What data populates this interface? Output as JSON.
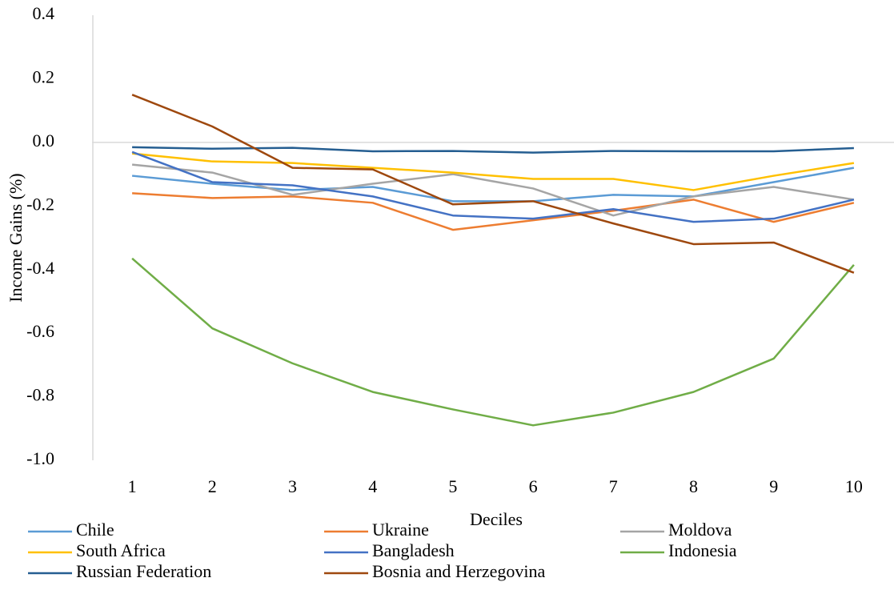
{
  "chart_data": {
    "type": "line",
    "x_label": "Deciles",
    "y_label": "Income Gains (%)",
    "categories": [
      "1",
      "2",
      "3",
      "4",
      "5",
      "6",
      "7",
      "8",
      "9",
      "10"
    ],
    "ylim": [
      -1.0,
      0.4
    ],
    "yticks": [
      0.4,
      0.2,
      {
        "value": 0,
        "label": "0.0"
      },
      -0.2,
      -0.4,
      -0.6,
      -0.8,
      {
        "value": -1.0,
        "label": "-1.0"
      }
    ],
    "grid": false,
    "legend": "bottom",
    "series": [
      {
        "name": "Chile",
        "color": "#5b9bd5",
        "values": [
          -0.105,
          -0.13,
          -0.15,
          -0.14,
          -0.185,
          -0.185,
          -0.165,
          -0.17,
          -0.125,
          -0.08
        ]
      },
      {
        "name": "Ukraine",
        "color": "#ed7d31",
        "values": [
          -0.16,
          -0.175,
          -0.17,
          -0.19,
          -0.275,
          -0.245,
          -0.215,
          -0.18,
          -0.25,
          -0.19
        ]
      },
      {
        "name": "Moldova",
        "color": "#a5a5a5",
        "values": [
          -0.07,
          -0.095,
          -0.165,
          -0.13,
          -0.1,
          -0.145,
          -0.23,
          -0.17,
          -0.14,
          -0.18
        ]
      },
      {
        "name": "South Africa",
        "color": "#ffc000",
        "values": [
          -0.035,
          -0.06,
          -0.065,
          -0.08,
          -0.095,
          -0.115,
          -0.115,
          -0.15,
          -0.105,
          -0.065
        ]
      },
      {
        "name": "Bangladesh",
        "color": "#4472c4",
        "values": [
          -0.03,
          -0.125,
          -0.135,
          -0.17,
          -0.23,
          -0.24,
          -0.21,
          -0.25,
          -0.24,
          -0.18
        ]
      },
      {
        "name": "Indonesia",
        "color": "#70ad47",
        "values": [
          -0.365,
          -0.585,
          -0.695,
          -0.785,
          -0.84,
          -0.89,
          -0.85,
          -0.785,
          -0.68,
          -0.385
        ]
      },
      {
        "name": "Russian Federation",
        "color": "#255e91",
        "values": [
          -0.015,
          -0.02,
          -0.017,
          -0.028,
          -0.027,
          -0.032,
          -0.027,
          -0.028,
          -0.028,
          -0.018
        ]
      },
      {
        "name": "Bosnia and Herzegovina",
        "color": "#9e480e",
        "values": [
          0.15,
          0.05,
          -0.08,
          -0.085,
          -0.195,
          -0.185,
          -0.255,
          -0.32,
          -0.315,
          -0.41
        ]
      }
    ]
  }
}
